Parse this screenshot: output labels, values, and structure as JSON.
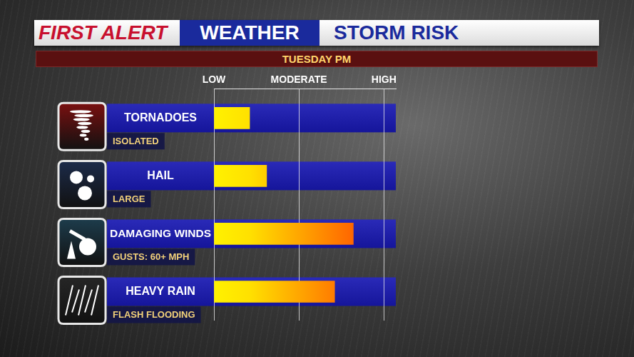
{
  "header": {
    "brand": "FIRST ALERT",
    "section": "WEATHER",
    "title": "STORM RISK"
  },
  "chart_data": {
    "type": "bar",
    "orientation": "horizontal",
    "subtitle": "TUESDAY PM",
    "categories": [
      "TORNADOES",
      "HAIL",
      "DAMAGING WINDS",
      "HEAVY RAIN"
    ],
    "category_details": [
      "ISOLATED",
      "LARGE",
      "GUSTS: 60+ MPH",
      "FLASH FLOODING"
    ],
    "values": [
      21,
      31,
      82,
      71
    ],
    "color": "#ff3300",
    "xlim": [
      0,
      107
    ],
    "xticks": [
      {
        "value": 0,
        "label": "LOW"
      },
      {
        "value": 50,
        "label": "MODERATE"
      },
      {
        "value": 100,
        "label": "HIGH"
      }
    ],
    "grid": true
  }
}
